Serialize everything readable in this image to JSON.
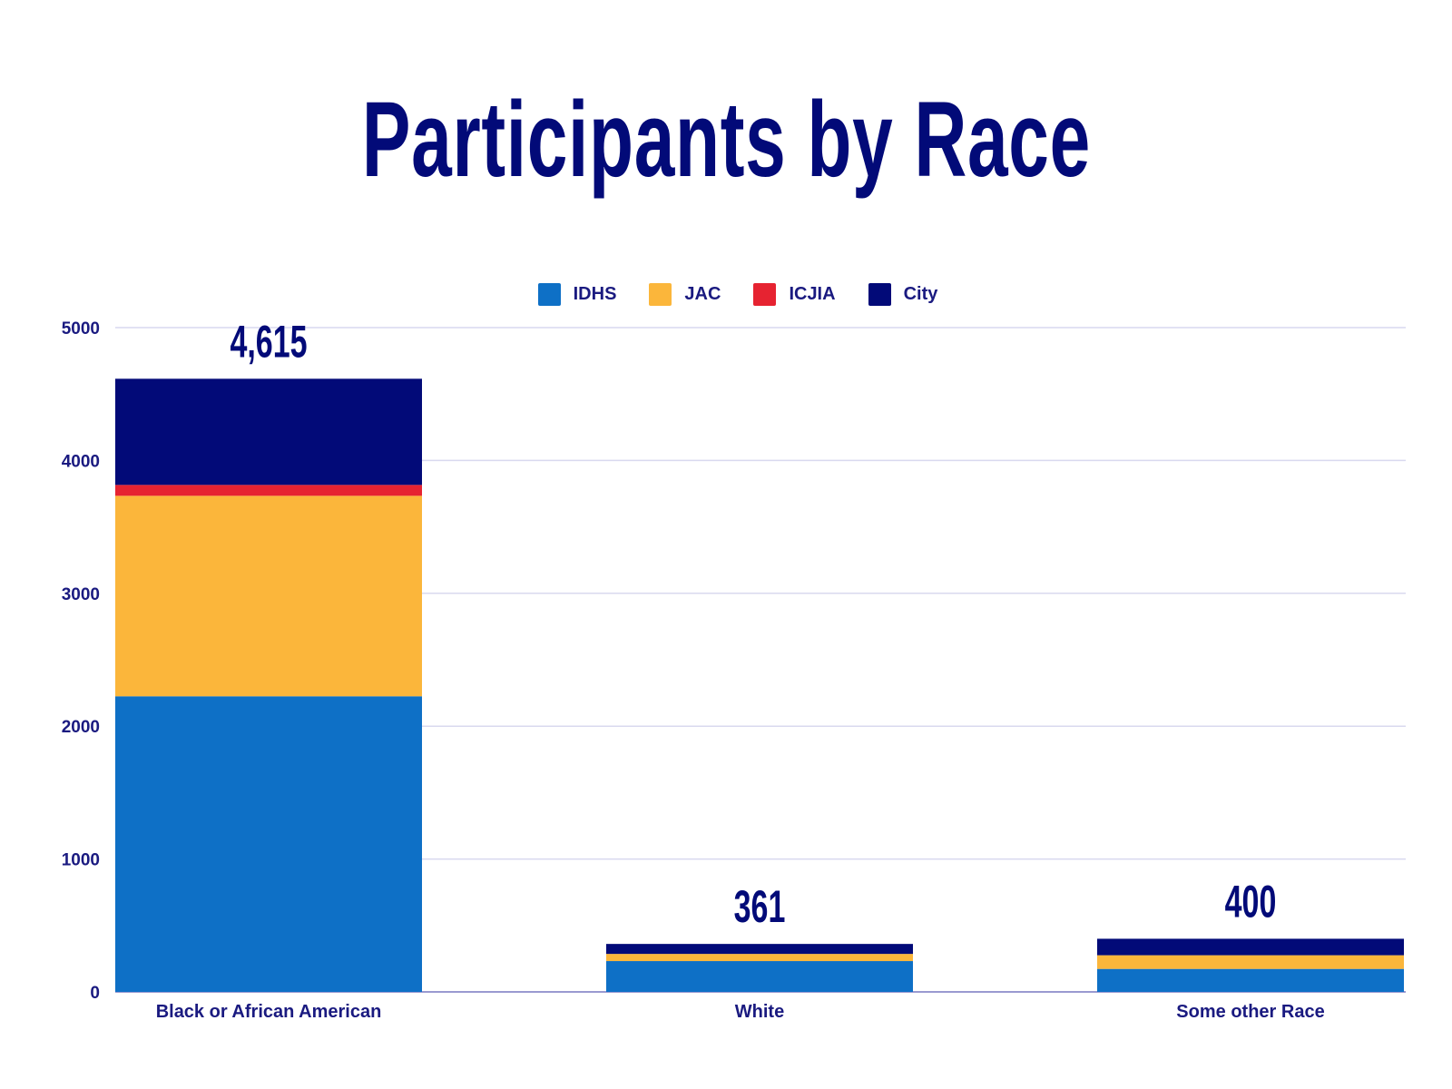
{
  "chart_data": {
    "type": "bar",
    "stacked": true,
    "title": "Participants by Race",
    "xlabel": "",
    "ylabel": "",
    "ylim": [
      0,
      5000
    ],
    "yticks": [
      0,
      1000,
      2000,
      3000,
      4000,
      5000
    ],
    "grid": true,
    "legend_position": "top",
    "categories": [
      "Black or African American",
      "White",
      "Some other Race"
    ],
    "totals": [
      "4,615",
      "361",
      "400"
    ],
    "series": [
      {
        "name": "IDHS",
        "color": "#0e70c6",
        "values": [
          2225,
          232,
          173
        ]
      },
      {
        "name": "JAC",
        "color": "#fbb63b",
        "values": [
          1509,
          54,
          103
        ]
      },
      {
        "name": "ICJIA",
        "color": "#e62331",
        "values": [
          82,
          0,
          0
        ]
      },
      {
        "name": "City",
        "color": "#020a78",
        "values": [
          799,
          75,
          124
        ]
      }
    ]
  }
}
